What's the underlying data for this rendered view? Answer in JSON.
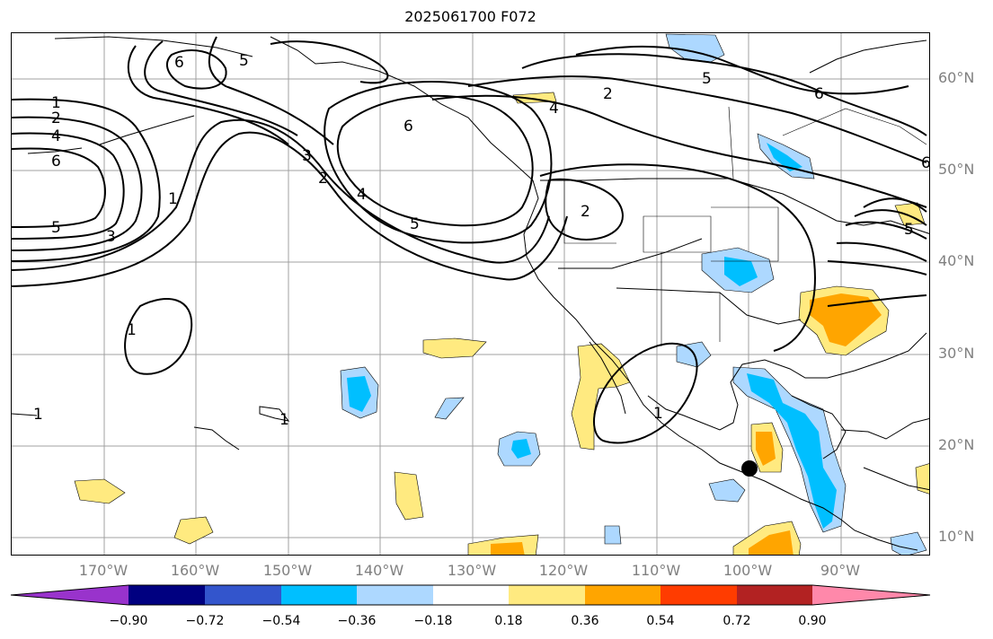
{
  "title": "2025061700 F072",
  "lat_labels": [
    "60°N",
    "50°N",
    "40°N",
    "30°N",
    "20°N",
    "10°N"
  ],
  "lon_labels": [
    "170°W",
    "160°W",
    "150°W",
    "140°W",
    "130°W",
    "120°W",
    "110°W",
    "100°W",
    "90°W"
  ],
  "contour_labels": [
    "1",
    "2",
    "4",
    "6",
    "5",
    "3",
    "6",
    "5",
    "6",
    "5",
    "1",
    "4",
    "2",
    "6",
    "3",
    "2",
    "4",
    "5",
    "6",
    "5",
    "2",
    "1",
    "1",
    "1",
    "1"
  ],
  "colorbar": {
    "tick_labels": [
      "−0.90",
      "−0.72",
      "−0.54",
      "−0.36",
      "−0.18",
      "0.18",
      "0.36",
      "0.54",
      "0.72",
      "0.90"
    ],
    "colors": [
      "#9933cc",
      "#000080",
      "#3355cc",
      "#00bfff",
      "#add8ff",
      "#ffffff",
      "#ffea80",
      "#ffa500",
      "#ff3c00",
      "#b22222",
      "#ff88aa"
    ]
  },
  "colors": {
    "contour": "#000000",
    "coast": "#000000",
    "grid": "#a0a0a0",
    "axis_label": "#808080"
  }
}
